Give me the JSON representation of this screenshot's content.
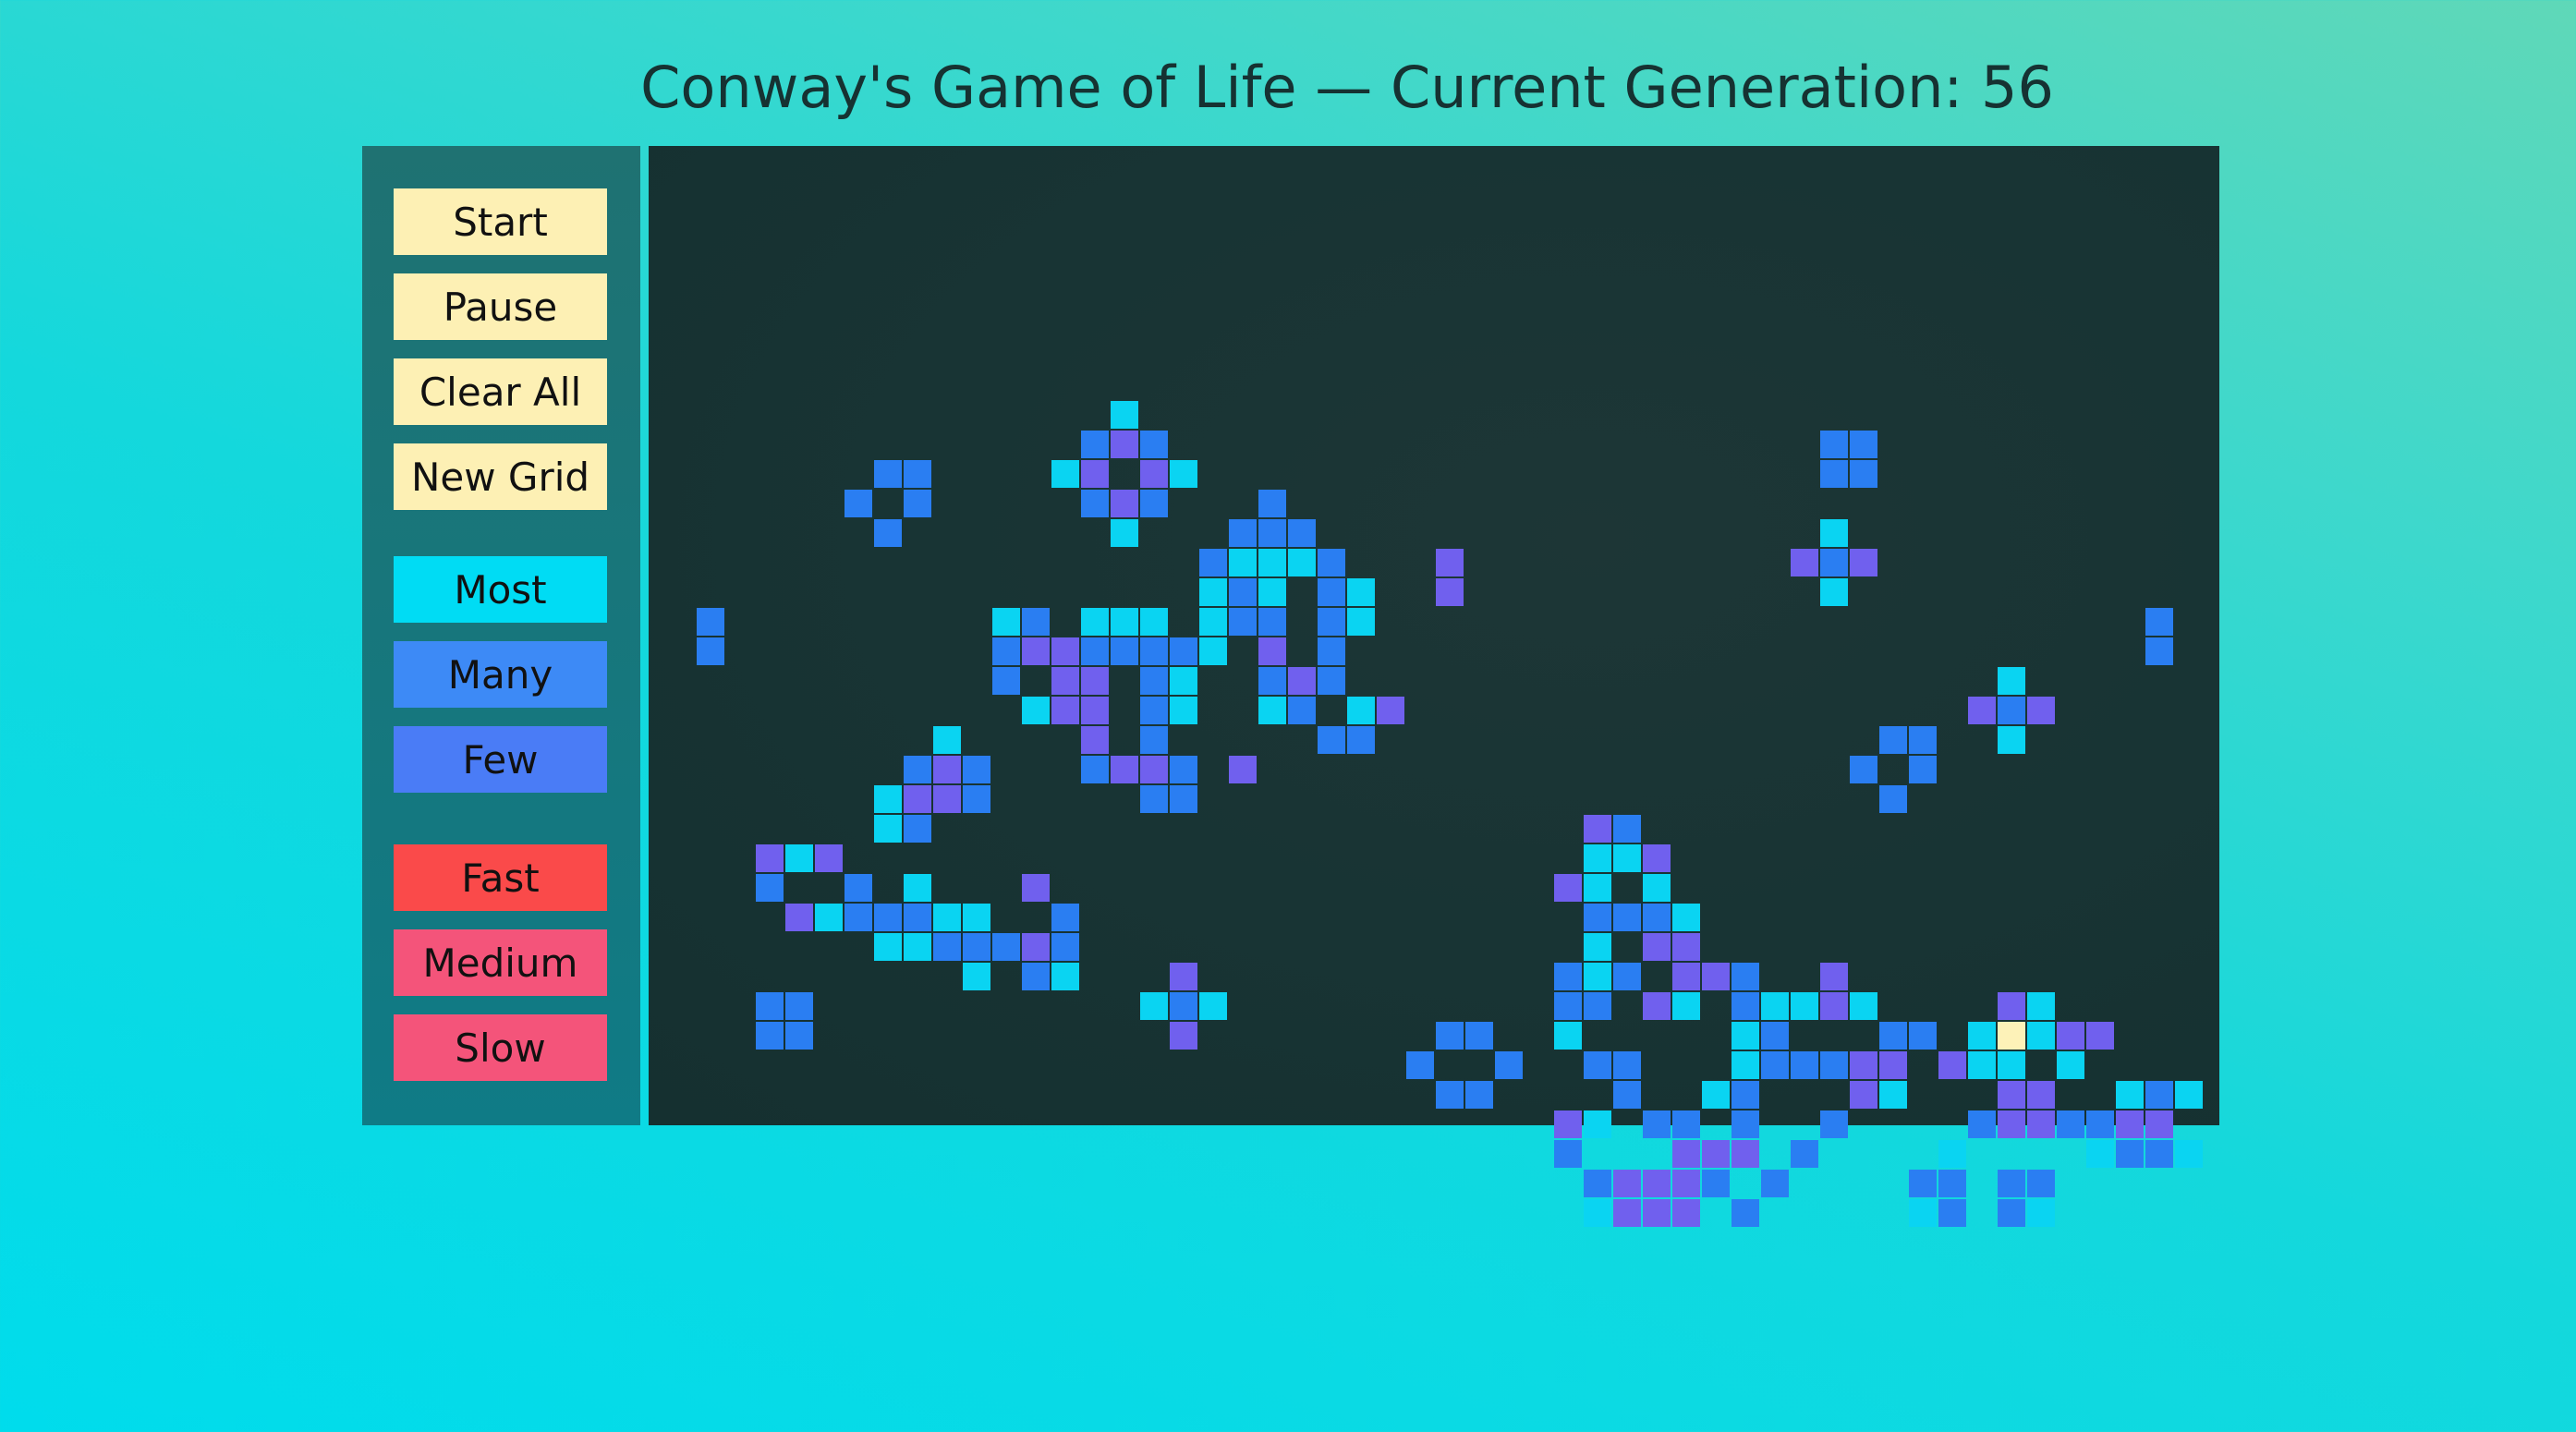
{
  "header": {
    "title": "Conway's Game of Life — Current Generation: 56"
  },
  "controls": [
    {
      "key": "start",
      "label": "Start",
      "color": "#fdf0b4"
    },
    {
      "key": "pause",
      "label": "Pause",
      "color": "#fdf0b4"
    },
    {
      "key": "clear",
      "label": "Clear All",
      "color": "#fdf0b4"
    },
    {
      "key": "new-grid",
      "label": "New Grid",
      "color": "#fdf0b4"
    },
    {
      "key": "most",
      "label": "Most",
      "color": "#00dcf4"
    },
    {
      "key": "many",
      "label": "Many",
      "color": "#3d8af6"
    },
    {
      "key": "few",
      "label": "Few",
      "color": "#4a7cf6"
    },
    {
      "key": "fast",
      "label": "Fast",
      "color": "#fa4a4a"
    },
    {
      "key": "medium",
      "label": "Medium",
      "color": "#f4547a"
    },
    {
      "key": "slow",
      "label": "Slow",
      "color": "#f4547a"
    }
  ],
  "palette": {
    "c": "#0ad4f2",
    "b": "#2a7ef2",
    "p": "#7060ee",
    "y": "#fdf2b8"
  },
  "grid": {
    "cols": 53,
    "rows": 33,
    "rows_data": [
      "                                                     ",
      "                                                     ",
      "                                                     ",
      "                                                     ",
      "                                                     ",
      "                 c                                   ",
      "                bpb                     bb           ",
      "                                        bb           ",
      "         bb    cpcpc                                 ",
      "        b b     bpb                  c               ",
      "         b       c   b      p       pbp              ",
      "                    bbb     p        c               ",
      "                   bcccb                            b",
      "                   cbcbc                            b",
      "                                              c      ",
      "                                             ppp     ",
      "                    b                         c      ",
      "                                        bb           ",
      "                    p                  b b           ",
      "                                        b            ",
      "         cpcbc          bc bpp                       ",
      "         pppp           bcc c b  c  c                ",
      "                                                     ",
      "                                                     ",
      "                                                     ",
      "                                                     ",
      "                                                     ",
      "                                                     ",
      "                                                     ",
      "                                                     ",
      "                                                     ",
      "                                                     ",
      "                                                     "
    ]
  }
}
